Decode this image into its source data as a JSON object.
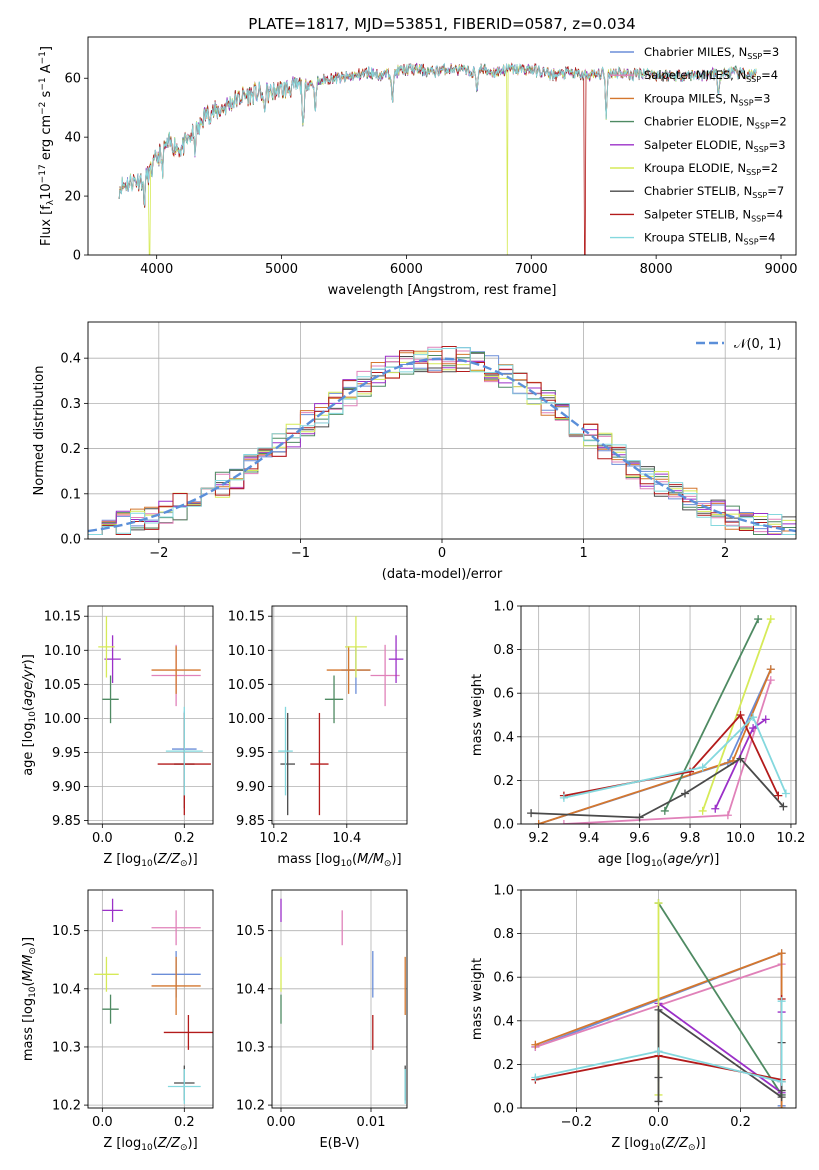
{
  "title": "PLATE=1817, MJD=53851, FIBERID=0587, z=0.034",
  "series": [
    {
      "name": "Chabrier MILES, N$_{SSP}$=3",
      "legend_main": "Chabrier MILES, N",
      "legend_sub": "SSP",
      "legend_tail": "=3",
      "color": "#6b8ed8"
    },
    {
      "name": "Salpeter MILES, N$_{SSP}$=4",
      "legend_main": "Salpeter MILES, N",
      "legend_sub": "SSP",
      "legend_tail": "=4",
      "color": "#e081b9"
    },
    {
      "name": "Kroupa MILES, N$_{SSP}$=3",
      "legend_main": "Kroupa MILES, N",
      "legend_sub": "SSP",
      "legend_tail": "=3",
      "color": "#d4772e"
    },
    {
      "name": "Chabrier ELODIE, N$_{SSP}$=2",
      "legend_main": "Chabrier ELODIE, N",
      "legend_sub": "SSP",
      "legend_tail": "=2",
      "color": "#4e8a62"
    },
    {
      "name": "Salpeter ELODIE, N$_{SSP}$=3",
      "legend_main": "Salpeter ELODIE, N",
      "legend_sub": "SSP",
      "legend_tail": "=3",
      "color": "#9b30c8"
    },
    {
      "name": "Kroupa ELODIE, N$_{SSP}$=2",
      "legend_main": "Kroupa ELODIE, N",
      "legend_sub": "SSP",
      "legend_tail": "=2",
      "color": "#d6ea58"
    },
    {
      "name": "Chabrier STELIB, N$_{SSP}$=7",
      "legend_main": "Chabrier STELIB, N",
      "legend_sub": "SSP",
      "legend_tail": "=7",
      "color": "#4a4a4a"
    },
    {
      "name": "Salpeter STELIB, N$_{SSP}$=4",
      "legend_main": "Salpeter STELIB, N",
      "legend_sub": "SSP",
      "legend_tail": "=4",
      "color": "#b31b1b"
    },
    {
      "name": "Kroupa STELIB, N$_{SSP}$=4",
      "legend_main": "Kroupa STELIB, N",
      "legend_sub": "SSP",
      "legend_tail": "=4",
      "color": "#84d8de"
    }
  ],
  "chart_data": [
    {
      "type": "line",
      "panel": "spectrum",
      "xlabel": "wavelength [Angstrom, rest frame]",
      "ylabel": "Flux [f$_\\lambda$10$^{-17}$ erg cm$^{-2}$ s$^{-1}$ A$^{-1}$]",
      "xlim": [
        3450,
        9120
      ],
      "ylim": [
        0,
        74
      ],
      "xticks": [
        4000,
        5000,
        6000,
        7000,
        8000,
        9000
      ],
      "yticks": [
        0,
        20,
        40,
        60
      ],
      "grid": false,
      "legend_position": "upper right",
      "continuum_x": [
        3700,
        3800,
        3900,
        3950,
        4000,
        4100,
        4200,
        4300,
        4400,
        4500,
        4600,
        4700,
        4800,
        4900,
        5000,
        5100,
        5200,
        5300,
        5400,
        5500,
        5600,
        5700,
        5800,
        5900,
        6000,
        6100,
        6200,
        6300,
        6400,
        6500,
        6600,
        6700,
        6800,
        6900,
        7000,
        7100,
        7200,
        7300,
        7400,
        7500,
        7600,
        7700,
        7800,
        7900,
        8000,
        8200,
        8400,
        8600,
        8800
      ],
      "continuum_y": [
        23,
        25,
        26,
        28,
        33,
        38,
        36,
        42,
        48,
        49,
        52,
        54,
        55,
        55,
        56,
        57,
        58,
        59,
        60,
        60,
        61,
        62,
        61,
        62,
        63,
        63,
        62,
        63,
        63,
        62,
        63,
        62,
        63,
        63,
        63,
        62,
        61,
        62,
        61,
        61,
        62,
        62,
        61,
        62,
        61,
        61,
        61,
        62,
        61
      ],
      "features": [
        {
          "x": 3900,
          "y": 18
        },
        {
          "x": 4045,
          "y": 29
        },
        {
          "x": 4305,
          "y": 36
        },
        {
          "x": 4340,
          "y": 42
        },
        {
          "x": 4860,
          "y": 49
        },
        {
          "x": 5175,
          "y": 42
        },
        {
          "x": 5270,
          "y": 50
        },
        {
          "x": 5890,
          "y": 53
        },
        {
          "x": 6563,
          "y": 56
        },
        {
          "x": 7600,
          "y": 48
        },
        {
          "x": 8500,
          "y": 54
        }
      ],
      "dropouts": [
        {
          "name": "Kroupa ELODIE, N$_{SSP}$=2",
          "x": 3940
        },
        {
          "name": "Kroupa ELODIE, N$_{SSP}$=2",
          "x": 6805
        },
        {
          "name": "Salpeter STELIB, N$_{SSP}$=4",
          "x": 7425
        }
      ]
    },
    {
      "type": "line",
      "panel": "residual-histogram",
      "xlabel": "(data-model)/error",
      "ylabel": "Normed distribution",
      "xlim": [
        -2.5,
        2.5
      ],
      "ylim": [
        0,
        0.48
      ],
      "xticks": [
        -2,
        -1,
        0,
        1,
        2
      ],
      "yticks": [
        0.0,
        0.1,
        0.2,
        0.3,
        0.4
      ],
      "grid": true,
      "legend_position": "upper right",
      "legend_entry": "$\\mathcal{N}(0,1)$",
      "legend_text": "𝒩(0, 1)",
      "gaussian_color": "#5b8fd9",
      "bin_width": 0.1
    },
    {
      "type": "scatter",
      "panel": "age-vs-Z",
      "xlabel": "Z [log$_{10}$(Z/Z$_\\odot$)]",
      "ylabel": "age  [log$_{10}$(age/yr)]",
      "xlim": [
        -0.035,
        0.27
      ],
      "ylim": [
        9.845,
        10.165
      ],
      "xticks": [
        0.0,
        0.2
      ],
      "yticks": [
        9.85,
        9.9,
        9.95,
        10.0,
        10.05,
        10.1,
        10.15
      ],
      "grid": true,
      "points": [
        {
          "x": 0.2,
          "y": 9.955,
          "xerr": 0.03,
          "yerr": 0.055,
          "color": "#6b8ed8"
        },
        {
          "x": 0.18,
          "y": 10.063,
          "xerr": 0.06,
          "yerr": 0.045,
          "color": "#e081b9"
        },
        {
          "x": 0.18,
          "y": 10.071,
          "xerr": 0.06,
          "yerr": 0.035,
          "color": "#d4772e"
        },
        {
          "x": 0.02,
          "y": 10.028,
          "xerr": 0.02,
          "yerr": 0.035,
          "color": "#4e8a62"
        },
        {
          "x": 0.025,
          "y": 10.087,
          "xerr": 0.02,
          "yerr": 0.035,
          "color": "#9b30c8"
        },
        {
          "x": 0.01,
          "y": 10.105,
          "xerr": 0.02,
          "yerr": 0.045,
          "color": "#d6ea58"
        },
        {
          "x": 0.2,
          "y": 9.933,
          "xerr": 0.025,
          "yerr": 0.065,
          "color": "#4a4a4a"
        },
        {
          "x": 0.2,
          "y": 9.933,
          "xerr": 0.065,
          "yerr": 0.075,
          "color": "#b31b1b"
        },
        {
          "x": 0.2,
          "y": 9.952,
          "xerr": 0.045,
          "yerr": 0.065,
          "color": "#84d8de"
        }
      ]
    },
    {
      "type": "scatter",
      "panel": "age-vs-mass",
      "xlabel": "mass [log$_{10}$(M/M$_\\odot$)]",
      "ylabel": "",
      "xlim": [
        10.195,
        10.565
      ],
      "ylim": [
        9.845,
        10.165
      ],
      "xticks": [
        10.2,
        10.4
      ],
      "yticks": [
        9.85,
        9.9,
        9.95,
        10.0,
        10.05,
        10.1,
        10.15
      ],
      "grid": true,
      "points": [
        {
          "x": 10.425,
          "y": 10.071,
          "xerr": 0.04,
          "yerr": 0.035,
          "color": "#6b8ed8"
        },
        {
          "x": 10.505,
          "y": 10.063,
          "xerr": 0.04,
          "yerr": 0.045,
          "color": "#e081b9"
        },
        {
          "x": 10.405,
          "y": 10.071,
          "xerr": 0.06,
          "yerr": 0.035,
          "color": "#d4772e"
        },
        {
          "x": 10.365,
          "y": 10.028,
          "xerr": 0.025,
          "yerr": 0.035,
          "color": "#4e8a62"
        },
        {
          "x": 10.535,
          "y": 10.087,
          "xerr": 0.02,
          "yerr": 0.035,
          "color": "#9b30c8"
        },
        {
          "x": 10.425,
          "y": 10.105,
          "xerr": 0.03,
          "yerr": 0.045,
          "color": "#d6ea58"
        },
        {
          "x": 10.238,
          "y": 9.933,
          "xerr": 0.02,
          "yerr": 0.075,
          "color": "#4a4a4a"
        },
        {
          "x": 10.325,
          "y": 9.933,
          "xerr": 0.025,
          "yerr": 0.075,
          "color": "#b31b1b"
        },
        {
          "x": 10.232,
          "y": 9.952,
          "xerr": 0.02,
          "yerr": 0.065,
          "color": "#84d8de"
        }
      ]
    },
    {
      "type": "line",
      "panel": "weight-vs-age",
      "xlabel": "age  [log$_{10}$(age/yr)]",
      "ylabel": "mass weight",
      "xlim": [
        9.13,
        10.22
      ],
      "ylim": [
        0,
        1.0
      ],
      "xticks": [
        9.2,
        9.4,
        9.6,
        9.8,
        10.0,
        10.2
      ],
      "yticks": [
        0.0,
        0.2,
        0.4,
        0.6,
        0.8,
        1.0
      ],
      "grid": true,
      "series_points": [
        {
          "color": "#6b8ed8",
          "x": [
            9.2,
            9.95,
            10.12
          ],
          "y": [
            0.0,
            0.28,
            0.71
          ]
        },
        {
          "color": "#e081b9",
          "x": [
            9.3,
            9.95,
            10.12
          ],
          "y": [
            0.0,
            0.04,
            0.66
          ]
        },
        {
          "color": "#d4772e",
          "x": [
            9.2,
            9.97,
            10.12
          ],
          "y": [
            0.0,
            0.29,
            0.71
          ]
        },
        {
          "color": "#4e8a62",
          "x": [
            9.7,
            10.07
          ],
          "y": [
            0.06,
            0.94
          ]
        },
        {
          "color": "#9b30c8",
          "x": [
            9.9,
            10.05,
            10.1
          ],
          "y": [
            0.07,
            0.44,
            0.48
          ]
        },
        {
          "color": "#d6ea58",
          "x": [
            9.85,
            10.12
          ],
          "y": [
            0.06,
            0.94
          ]
        },
        {
          "color": "#4a4a4a",
          "x": [
            9.17,
            9.6,
            9.78,
            10.0,
            10.17
          ],
          "y": [
            0.05,
            0.03,
            0.14,
            0.3,
            0.08
          ]
        },
        {
          "color": "#b31b1b",
          "x": [
            9.3,
            9.8,
            10.0,
            10.15
          ],
          "y": [
            0.13,
            0.24,
            0.5,
            0.13
          ]
        },
        {
          "color": "#84d8de",
          "x": [
            9.3,
            9.85,
            10.05,
            10.18
          ],
          "y": [
            0.12,
            0.26,
            0.49,
            0.14
          ]
        }
      ]
    },
    {
      "type": "scatter",
      "panel": "mass-vs-Z",
      "xlabel": "Z [log$_{10}$(Z/Z$_\\odot$)]",
      "ylabel": "mass [log$_{10}$(M/M$_\\odot$)]",
      "xlim": [
        -0.035,
        0.27
      ],
      "ylim": [
        10.195,
        10.57
      ],
      "xticks": [
        0.0,
        0.2
      ],
      "yticks": [
        10.2,
        10.3,
        10.4,
        10.5
      ],
      "grid": true,
      "points": [
        {
          "x": 0.18,
          "y": 10.425,
          "xerr": 0.06,
          "yerr": 0.04,
          "color": "#6b8ed8"
        },
        {
          "x": 0.18,
          "y": 10.505,
          "xerr": 0.06,
          "yerr": 0.03,
          "color": "#e081b9"
        },
        {
          "x": 0.18,
          "y": 10.405,
          "xerr": 0.06,
          "yerr": 0.05,
          "color": "#d4772e"
        },
        {
          "x": 0.02,
          "y": 10.365,
          "xerr": 0.02,
          "yerr": 0.025,
          "color": "#4e8a62"
        },
        {
          "x": 0.025,
          "y": 10.535,
          "xerr": 0.025,
          "yerr": 0.02,
          "color": "#9b30c8"
        },
        {
          "x": 0.01,
          "y": 10.425,
          "xerr": 0.03,
          "yerr": 0.03,
          "color": "#d6ea58"
        },
        {
          "x": 0.2,
          "y": 10.238,
          "xerr": 0.025,
          "yerr": 0.03,
          "color": "#4a4a4a"
        },
        {
          "x": 0.21,
          "y": 10.325,
          "xerr": 0.06,
          "yerr": 0.03,
          "color": "#b31b1b"
        },
        {
          "x": 0.2,
          "y": 10.232,
          "xerr": 0.04,
          "yerr": 0.03,
          "color": "#84d8de"
        }
      ]
    },
    {
      "type": "scatter",
      "panel": "mass-vs-EBV",
      "xlabel": "E(B-V)",
      "ylabel": "",
      "xlim": [
        -0.001,
        0.014
      ],
      "ylim": [
        10.195,
        10.57
      ],
      "xticks": [
        0.0,
        0.01
      ],
      "yticks": [
        10.2,
        10.3,
        10.4,
        10.5
      ],
      "grid": true,
      "points": [
        {
          "x": 0.0102,
          "y": 10.425,
          "xerr": 0,
          "yerr": 0.04,
          "color": "#6b8ed8"
        },
        {
          "x": 0.0068,
          "y": 10.505,
          "xerr": 0,
          "yerr": 0.03,
          "color": "#e081b9"
        },
        {
          "x": 0.0138,
          "y": 10.405,
          "xerr": 0,
          "yerr": 0.05,
          "color": "#d4772e"
        },
        {
          "x": 0.0,
          "y": 10.365,
          "xerr": 0,
          "yerr": 0.025,
          "color": "#4e8a62"
        },
        {
          "x": 0.0,
          "y": 10.535,
          "xerr": 0,
          "yerr": 0.02,
          "color": "#9b30c8"
        },
        {
          "x": 0.0,
          "y": 10.425,
          "xerr": 0,
          "yerr": 0.03,
          "color": "#d6ea58"
        },
        {
          "x": 0.0138,
          "y": 10.238,
          "xerr": 0,
          "yerr": 0.03,
          "color": "#4a4a4a"
        },
        {
          "x": 0.0102,
          "y": 10.325,
          "xerr": 0,
          "yerr": 0.03,
          "color": "#b31b1b"
        },
        {
          "x": 0.0138,
          "y": 10.232,
          "xerr": 0,
          "yerr": 0.03,
          "color": "#84d8de"
        }
      ]
    },
    {
      "type": "line",
      "panel": "weight-vs-Z",
      "xlabel": "Z [log$_{10}$(Z/Z$_\\odot$)]",
      "ylabel": "mass weight",
      "xlim": [
        -0.335,
        0.335
      ],
      "ylim": [
        0,
        1.0
      ],
      "xticks": [
        -0.2,
        0.0,
        0.2
      ],
      "yticks": [
        0.0,
        0.2,
        0.4,
        0.6,
        0.8,
        1.0
      ],
      "grid": true,
      "series_points": [
        {
          "color": "#6b8ed8",
          "x": [
            -0.3,
            0.3,
            0.3
          ],
          "y": [
            0.28,
            0.71,
            0.01
          ]
        },
        {
          "color": "#e081b9",
          "x": [
            -0.3,
            0.3,
            0.3
          ],
          "y": [
            0.28,
            0.66,
            0.06
          ]
        },
        {
          "color": "#d4772e",
          "x": [
            -0.3,
            0.3,
            0.3
          ],
          "y": [
            0.29,
            0.71,
            0.0
          ]
        },
        {
          "color": "#4e8a62",
          "x": [
            0.0,
            0.3
          ],
          "y": [
            0.94,
            0.06
          ]
        },
        {
          "color": "#9b30c8",
          "x": [
            0.0,
            0.3,
            0.3
          ],
          "y": [
            0.48,
            0.07,
            0.44
          ]
        },
        {
          "color": "#d6ea58",
          "x": [
            0.0,
            0.0
          ],
          "y": [
            0.06,
            0.94
          ]
        },
        {
          "color": "#4a4a4a",
          "x": [
            0.0,
            0.0,
            0.0,
            0.3,
            0.3,
            0.3,
            0.3
          ],
          "y": [
            0.03,
            0.14,
            0.45,
            0.05,
            0.08,
            0.3,
            0.12
          ]
        },
        {
          "color": "#b31b1b",
          "x": [
            -0.3,
            0.0,
            0.3,
            0.3
          ],
          "y": [
            0.13,
            0.24,
            0.13,
            0.5
          ]
        },
        {
          "color": "#84d8de",
          "x": [
            -0.3,
            0.0,
            0.3,
            0.3
          ],
          "y": [
            0.14,
            0.26,
            0.12,
            0.49
          ]
        }
      ]
    }
  ]
}
